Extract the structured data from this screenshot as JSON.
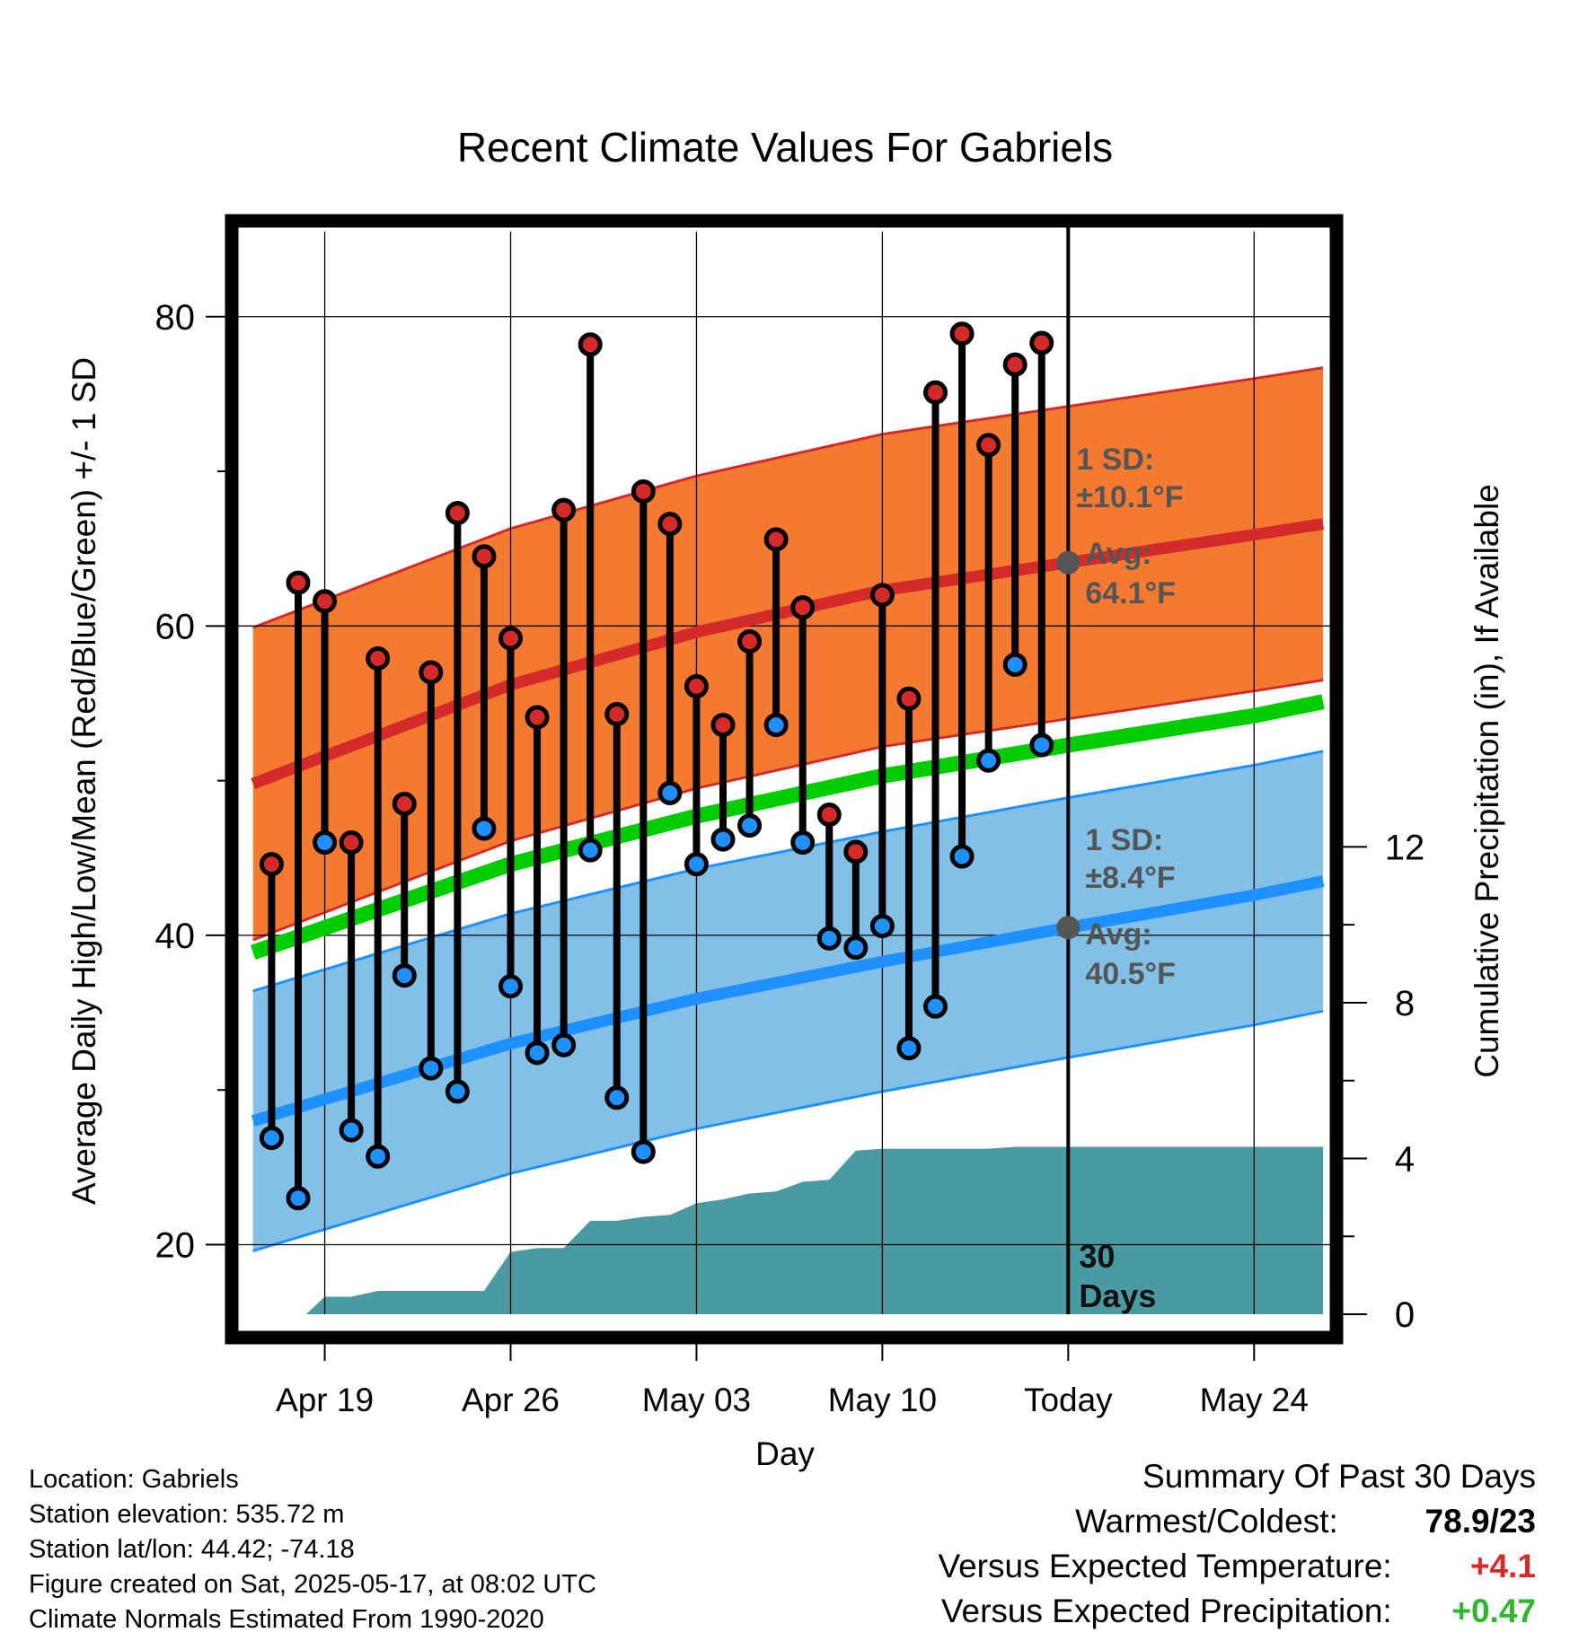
{
  "chart_data": {
    "type": "line",
    "title": "Recent Climate Values For Gabriels",
    "xlabel": "Day",
    "ylabel_left": "Average Daily High/Low/Mean (Red/Blue/Green) +/- 1 SD",
    "ylabel_right": "Cumulative Precipitation (in), If Available",
    "xlim": [
      -3.3,
      37.9
    ],
    "ylim_left": [
      15.5,
      85.5
    ],
    "yticks_left": [
      20,
      40,
      60,
      80
    ],
    "ylim_right": [
      0,
      27.8
    ],
    "yticks_right": [
      0,
      4,
      8,
      12
    ],
    "xticks": [
      {
        "x": 0,
        "label": "Apr 19"
      },
      {
        "x": 7,
        "label": "Apr 26"
      },
      {
        "x": 14,
        "label": "May 03"
      },
      {
        "x": 21,
        "label": "May 10"
      },
      {
        "x": 28,
        "label": "Today"
      },
      {
        "x": 35,
        "label": "May 24"
      }
    ],
    "today_x": 28,
    "today_label": "30\nDays",
    "grid": true,
    "normals": {
      "x": [
        -2.7,
        7,
        14,
        21,
        28,
        35,
        37.6
      ],
      "high_mean": [
        49.8,
        56.2,
        59.6,
        62.3,
        64.1,
        65.9,
        66.6
      ],
      "high_sd": 10.1,
      "low_mean": [
        28.0,
        33.0,
        35.9,
        38.3,
        40.5,
        42.6,
        43.5
      ],
      "low_sd": 8.4,
      "mean": [
        38.9,
        44.6,
        47.7,
        50.3,
        52.3,
        54.2,
        55.1
      ]
    },
    "high_annotation": {
      "sd_label": "1 SD:",
      "sd_value": "±10.1°F",
      "avg_label": "Avg:",
      "avg_value": "64.1°F",
      "avg": 64.1
    },
    "low_annotation": {
      "sd_label": "1 SD:",
      "sd_value": "±8.4°F",
      "avg_label": "Avg:",
      "avg_value": "40.5°F",
      "avg": 40.5
    },
    "daily": [
      {
        "x": -2,
        "high": 44.6,
        "low": 26.9
      },
      {
        "x": -1,
        "high": 62.8,
        "low": 23.0
      },
      {
        "x": 0,
        "high": 61.6,
        "low": 46.0
      },
      {
        "x": 1,
        "high": 46.0,
        "low": 27.4
      },
      {
        "x": 2,
        "high": 57.9,
        "low": 25.7
      },
      {
        "x": 3,
        "high": 48.5,
        "low": 37.4
      },
      {
        "x": 4,
        "high": 57.0,
        "low": 31.4
      },
      {
        "x": 5,
        "high": 67.3,
        "low": 29.9
      },
      {
        "x": 6,
        "high": 64.5,
        "low": 46.9
      },
      {
        "x": 7,
        "high": 59.2,
        "low": 36.7
      },
      {
        "x": 8,
        "high": 54.1,
        "low": 32.4
      },
      {
        "x": 9,
        "high": 67.5,
        "low": 32.9
      },
      {
        "x": 10,
        "high": 78.2,
        "low": 45.5
      },
      {
        "x": 11,
        "high": 54.3,
        "low": 29.5
      },
      {
        "x": 12,
        "high": 68.7,
        "low": 26.0
      },
      {
        "x": 13,
        "high": 66.6,
        "low": 49.2
      },
      {
        "x": 14,
        "high": 56.1,
        "low": 44.6
      },
      {
        "x": 15,
        "high": 53.6,
        "low": 46.2
      },
      {
        "x": 16,
        "high": 59.0,
        "low": 47.1
      },
      {
        "x": 17,
        "high": 65.6,
        "low": 53.6
      },
      {
        "x": 18,
        "high": 61.2,
        "low": 46.0
      },
      {
        "x": 19,
        "high": 47.8,
        "low": 39.8
      },
      {
        "x": 20,
        "high": 45.4,
        "low": 39.2
      },
      {
        "x": 21,
        "high": 62.0,
        "low": 40.6
      },
      {
        "x": 22,
        "high": 55.3,
        "low": 32.7
      },
      {
        "x": 23,
        "high": 75.1,
        "low": 35.4
      },
      {
        "x": 24,
        "high": 78.9,
        "low": 45.1
      },
      {
        "x": 25,
        "high": 71.7,
        "low": 51.3
      },
      {
        "x": 26,
        "high": 76.9,
        "low": 57.5
      },
      {
        "x": 27,
        "high": 78.3,
        "low": 52.3
      }
    ],
    "precip": {
      "x": [
        -2.7,
        -0.7,
        0,
        1,
        2,
        3,
        4,
        5,
        6,
        7,
        8,
        9,
        10,
        11,
        12,
        13,
        14,
        15,
        16,
        17,
        18,
        19,
        20,
        21,
        22,
        23,
        24,
        25,
        26,
        27,
        28,
        35,
        37.6
      ],
      "cumulative": [
        0,
        0,
        0.45,
        0.45,
        0.6,
        0.6,
        0.6,
        0.6,
        0.6,
        1.6,
        1.7,
        1.7,
        2.4,
        2.4,
        2.5,
        2.55,
        2.85,
        2.95,
        3.1,
        3.15,
        3.4,
        3.45,
        4.2,
        4.25,
        4.25,
        4.25,
        4.25,
        4.25,
        4.3,
        4.3,
        4.3,
        4.3,
        4.3
      ]
    }
  },
  "footer": {
    "location": "Location: Gabriels",
    "elevation": "Station elevation: 535.72 m",
    "latlon": "Station lat/lon: 44.42; -74.18",
    "created": "Figure created on Sat, 2025-05-17, at 08:02 UTC",
    "normals": "Climate Normals Estimated From 1990-2020"
  },
  "summary": {
    "title": "Summary Of Past 30 Days",
    "warmest_label": "Warmest/Coldest:",
    "warmest_value": "78.9/23",
    "temp_label": "Versus Expected Temperature:",
    "temp_value": "+4.1",
    "precip_label": "Versus Expected Precipitation:",
    "precip_value": "+0.47"
  },
  "colors": {
    "high_band": "#f47a31",
    "high_line": "#d42a2a",
    "low_band": "#83c0e8",
    "low_line": "#1e90ff",
    "mean_line": "#00cc00",
    "precip_fill": "#4a9aa3",
    "annotation": "#555555",
    "temp_delta": "#d42a2a",
    "precip_delta": "#2db82d"
  }
}
